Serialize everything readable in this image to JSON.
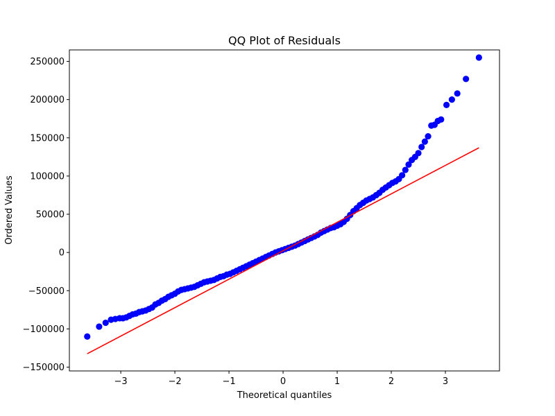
{
  "chart_data": {
    "type": "scatter",
    "title": "QQ Plot of Residuals",
    "xlabel": "Theoretical quantiles",
    "ylabel": "Ordered Values",
    "xlim": [
      -3.95,
      4.0
    ],
    "ylim": [
      -155000,
      265000
    ],
    "xticks": [
      -3,
      -2,
      -1,
      0,
      1,
      2,
      3
    ],
    "xtick_labels": [
      "−3",
      "−2",
      "−1",
      "0",
      "1",
      "2",
      "3"
    ],
    "yticks": [
      -150000,
      -100000,
      -50000,
      0,
      50000,
      100000,
      150000,
      200000,
      250000
    ],
    "ytick_labels": [
      "−150000",
      "−100000",
      "−50000",
      "0",
      "50000",
      "100000",
      "150000",
      "200000",
      "250000"
    ],
    "grid": false,
    "colors": {
      "points": "#0000ff",
      "fit_line": "#ff0000"
    },
    "series": [
      {
        "kind": "points",
        "x": [
          -3.62,
          -3.4,
          -3.28,
          -3.18,
          -3.1,
          -3.02,
          -2.96,
          -2.9,
          -2.84,
          -2.78,
          -2.72,
          -2.66,
          -2.6,
          -2.54,
          -2.48,
          -2.42,
          -2.36,
          -2.3,
          -2.24,
          -2.18,
          -2.12,
          -2.06,
          -2.0,
          -1.94,
          -1.88,
          -1.82,
          -1.76,
          -1.7,
          -1.64,
          -1.58,
          -1.52,
          -1.46,
          -1.4,
          -1.34,
          -1.28,
          -1.22,
          -1.16,
          -1.1,
          -1.04,
          -0.98,
          -0.92,
          -0.86,
          -0.8,
          -0.74,
          -0.68,
          -0.62,
          -0.56,
          -0.5,
          -0.44,
          -0.38,
          -0.32,
          -0.26,
          -0.2,
          -0.14,
          -0.08,
          -0.02,
          0.04,
          0.1,
          0.16,
          0.22,
          0.28,
          0.34,
          0.4,
          0.46,
          0.52,
          0.58,
          0.64,
          0.7,
          0.76,
          0.82,
          0.88,
          0.94,
          1.0,
          1.06,
          1.12,
          1.18,
          1.24,
          1.3,
          1.36,
          1.42,
          1.48,
          1.54,
          1.6,
          1.66,
          1.72,
          1.78,
          1.84,
          1.9,
          1.96,
          2.02,
          2.08,
          2.14,
          2.2,
          2.26,
          2.32,
          2.38,
          2.44,
          2.5,
          2.56,
          2.62,
          2.68,
          2.74,
          2.8,
          2.86,
          2.92,
          3.02,
          3.12,
          3.22,
          3.38,
          3.62
        ],
        "y": [
          -110000,
          -97000,
          -92000,
          -88000,
          -87000,
          -86000,
          -86000,
          -85000,
          -83000,
          -81000,
          -80000,
          -78000,
          -77000,
          -76000,
          -74000,
          -72000,
          -68000,
          -66000,
          -63000,
          -61000,
          -58000,
          -56000,
          -54000,
          -51000,
          -49000,
          -48000,
          -47000,
          -46000,
          -45000,
          -43000,
          -41000,
          -39000,
          -38000,
          -37000,
          -36000,
          -34000,
          -32000,
          -31000,
          -29000,
          -28000,
          -26000,
          -24000,
          -22000,
          -20000,
          -18000,
          -16000,
          -14000,
          -12000,
          -10000,
          -8000,
          -6000,
          -4000,
          -2000,
          0,
          1500,
          3000,
          4500,
          6000,
          7500,
          9000,
          11000,
          13000,
          15000,
          17000,
          19000,
          21000,
          23000,
          26000,
          28000,
          30000,
          32000,
          33000,
          35000,
          37000,
          40000,
          44000,
          49000,
          54000,
          58000,
          62000,
          65000,
          68000,
          70000,
          72000,
          75000,
          78000,
          82000,
          85000,
          88000,
          91000,
          93000,
          96000,
          101000,
          108000,
          115000,
          121000,
          125000,
          130000,
          138000,
          145000,
          152000,
          166000,
          167000,
          172000,
          174000,
          193000,
          200000,
          208000,
          227000,
          255000
        ]
      },
      {
        "kind": "line",
        "x": [
          -3.62,
          3.62
        ],
        "y": [
          -132500,
          137000
        ]
      }
    ]
  }
}
